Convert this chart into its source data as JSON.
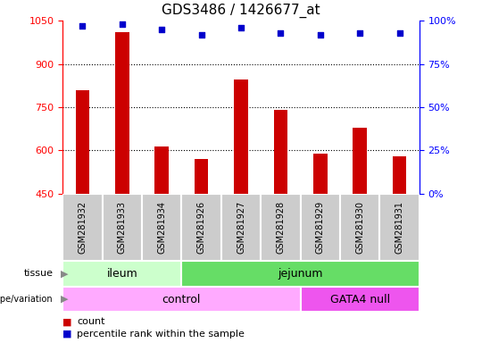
{
  "title": "GDS3486 / 1426677_at",
  "samples": [
    "GSM281932",
    "GSM281933",
    "GSM281934",
    "GSM281926",
    "GSM281927",
    "GSM281928",
    "GSM281929",
    "GSM281930",
    "GSM281931"
  ],
  "counts": [
    810,
    1010,
    615,
    570,
    845,
    740,
    590,
    680,
    580
  ],
  "percentile_ranks": [
    97,
    98,
    95,
    92,
    96,
    93,
    92,
    93,
    93
  ],
  "ylim_left": [
    450,
    1050
  ],
  "ylim_right": [
    0,
    100
  ],
  "yticks_left": [
    450,
    600,
    750,
    900,
    1050
  ],
  "yticks_right": [
    0,
    25,
    50,
    75,
    100
  ],
  "bar_color": "#cc0000",
  "dot_color": "#0000cc",
  "tissue_labels": [
    {
      "label": "ileum",
      "start": 0,
      "end": 3,
      "color": "#ccffcc"
    },
    {
      "label": "jejunum",
      "start": 3,
      "end": 9,
      "color": "#66dd66"
    }
  ],
  "genotype_labels": [
    {
      "label": "control",
      "start": 0,
      "end": 6,
      "color": "#ffaaff"
    },
    {
      "label": "GATA4 null",
      "start": 6,
      "end": 9,
      "color": "#ee55ee"
    }
  ],
  "grid_dotted_yticks": [
    600,
    750,
    900
  ],
  "bar_width": 0.35,
  "sample_bg_color": "#cccccc",
  "cell_edge_color": "#ffffff"
}
